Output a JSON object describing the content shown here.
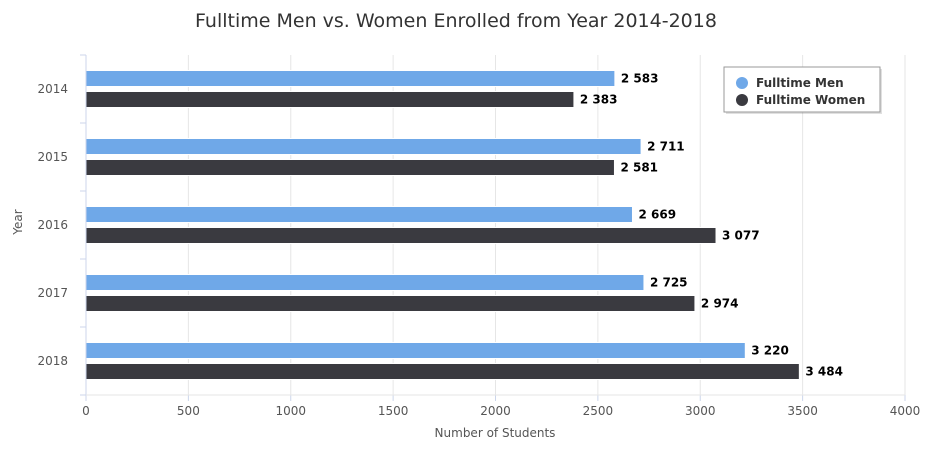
{
  "chart_data": {
    "type": "bar",
    "orientation": "horizontal",
    "title": "Fulltime Men vs. Women Enrolled from Year 2014-2018",
    "categories": [
      "2014",
      "2015",
      "2016",
      "2017",
      "2018"
    ],
    "series": [
      {
        "name": "Fulltime Men",
        "color": "#6fa8e8",
        "values": [
          2583,
          2711,
          2669,
          2725,
          3220
        ]
      },
      {
        "name": "Fulltime Women",
        "color": "#3a3a40",
        "values": [
          2383,
          2581,
          3077,
          2974,
          3484
        ]
      }
    ],
    "data_labels": [
      [
        "2 583",
        "2 711",
        "2 669",
        "2 725",
        "3 220"
      ],
      [
        "2 383",
        "2 581",
        "3 077",
        "2 974",
        "3 484"
      ]
    ],
    "xlabel": "Number of Students",
    "ylabel": "Year",
    "xlim": [
      0,
      4000
    ],
    "xticks": [
      0,
      500,
      1000,
      1500,
      2000,
      2500,
      3000,
      3500,
      4000
    ],
    "grid": true,
    "legend_position": "top-right"
  }
}
